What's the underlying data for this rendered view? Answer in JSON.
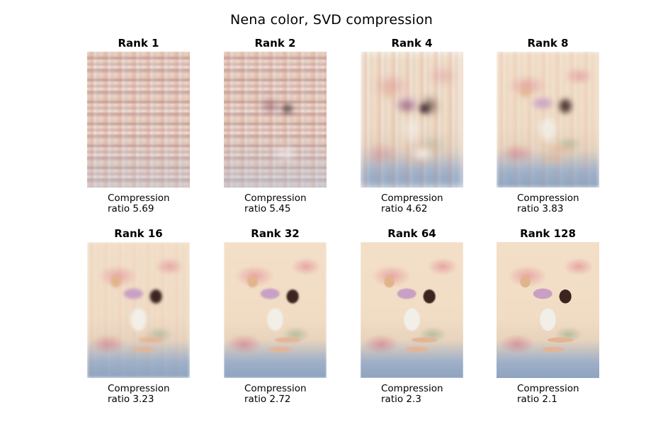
{
  "figure": {
    "title": "Nena color, SVD compression"
  },
  "panels": [
    {
      "title": "Rank 1",
      "caption_line1": "Compression",
      "caption_line2": "ratio 5.69"
    },
    {
      "title": "Rank 2",
      "caption_line1": "Compression",
      "caption_line2": "ratio 5.45"
    },
    {
      "title": "Rank 4",
      "caption_line1": "Compression",
      "caption_line2": "ratio 4.62"
    },
    {
      "title": "Rank 8",
      "caption_line1": "Compression",
      "caption_line2": "ratio 3.83"
    },
    {
      "title": "Rank 16",
      "caption_line1": "Compression",
      "caption_line2": "ratio 3.23"
    },
    {
      "title": "Rank 32",
      "caption_line1": "Compression",
      "caption_line2": "ratio 2.72"
    },
    {
      "title": "Rank 64",
      "caption_line1": "Compression",
      "caption_line2": "ratio 2.3"
    },
    {
      "title": "Rank 128",
      "caption_line1": "Compression",
      "caption_line2": "ratio 2.1"
    }
  ]
}
